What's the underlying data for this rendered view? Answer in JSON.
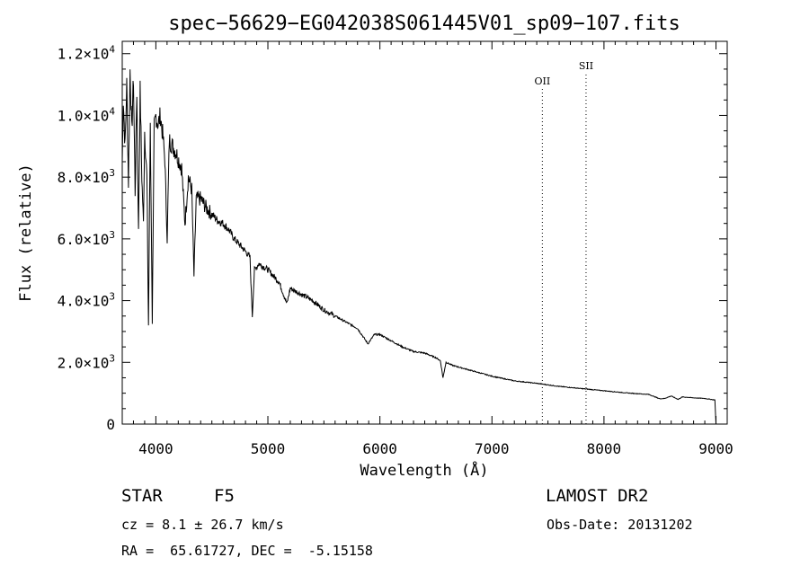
{
  "chart_data": {
    "type": "line",
    "title": "spec−56629−EG042038S061445V01_sp09−107.fits",
    "xlabel": "Wavelength (Å)",
    "ylabel": "Flux (relative)",
    "xlim": [
      3700,
      9100
    ],
    "ylim": [
      0,
      12400
    ],
    "x_ticks": [
      4000,
      5000,
      6000,
      7000,
      8000,
      9000
    ],
    "x_tick_labels": [
      "4000",
      "5000",
      "6000",
      "7000",
      "8000",
      "9000"
    ],
    "y_ticks": [
      0,
      2000,
      4000,
      6000,
      8000,
      10000,
      12000
    ],
    "y_tick_labels": [
      {
        "mantissa": "0",
        "exp": ""
      },
      {
        "mantissa": "2.0×10",
        "exp": "3"
      },
      {
        "mantissa": "4.0×10",
        "exp": "3"
      },
      {
        "mantissa": "6.0×10",
        "exp": "3"
      },
      {
        "mantissa": "8.0×10",
        "exp": "3"
      },
      {
        "mantissa": "1.0×10",
        "exp": "4"
      },
      {
        "mantissa": "1.2×10",
        "exp": "4"
      }
    ],
    "grid": false,
    "series": [
      {
        "x": [
          3700,
          3710,
          3725,
          3740,
          3755,
          3770,
          3785,
          3800,
          3815,
          3830,
          3845,
          3860,
          3875,
          3889,
          3900,
          3920,
          3934,
          3950,
          3968,
          3985,
          4000,
          4020,
          4040,
          4060,
          4080,
          4101,
          4120,
          4150,
          4180,
          4200,
          4230,
          4260,
          4290,
          4320,
          4340,
          4360,
          4400,
          4450,
          4500,
          4550,
          4600,
          4650,
          4700,
          4750,
          4800,
          4840,
          4861,
          4880,
          4920,
          5000,
          5100,
          5170,
          5200,
          5300,
          5400,
          5500,
          5600,
          5700,
          5800,
          5893,
          5950,
          6000,
          6100,
          6200,
          6300,
          6400,
          6500,
          6540,
          6563,
          6590,
          6650,
          6700,
          6800,
          6900,
          7000,
          7200,
          7400,
          7600,
          7800,
          8000,
          8200,
          8400,
          8498,
          8542,
          8600,
          8662,
          8700,
          8800,
          8900,
          8990,
          9000
        ],
        "y": [
          8500,
          10500,
          9000,
          11000,
          7800,
          11500,
          9500,
          11200,
          7500,
          10800,
          6200,
          10800,
          8000,
          6500,
          9500,
          8000,
          3200,
          9800,
          3300,
          9600,
          10000,
          9700,
          10000,
          9400,
          8600,
          6000,
          9200,
          9000,
          8800,
          8600,
          8300,
          6500,
          8000,
          7600,
          4800,
          7300,
          7300,
          7000,
          6800,
          6600,
          6500,
          6300,
          6000,
          5800,
          5600,
          5400,
          3500,
          5000,
          5200,
          5000,
          4600,
          3900,
          4400,
          4200,
          4000,
          3700,
          3500,
          3300,
          3100,
          2600,
          2900,
          2900,
          2700,
          2500,
          2350,
          2300,
          2150,
          2050,
          1500,
          2000,
          1900,
          1850,
          1750,
          1650,
          1550,
          1400,
          1320,
          1220,
          1150,
          1080,
          1010,
          960,
          820,
          830,
          910,
          800,
          880,
          850,
          830,
          780,
          0
        ]
      }
    ],
    "annotations": [
      {
        "label": "OII",
        "x": 7450,
        "y": 11000
      },
      {
        "label": "SII",
        "x": 7840,
        "y": 11500
      }
    ]
  },
  "info": {
    "class_type": "STAR",
    "subclass": "F5",
    "survey": "LAMOST DR2",
    "cz": "cz = 8.1 ± 26.7 km/s",
    "obs_date": "Obs-Date: 20131202",
    "radec": "RA =  65.61727, DEC =  -5.15158"
  }
}
